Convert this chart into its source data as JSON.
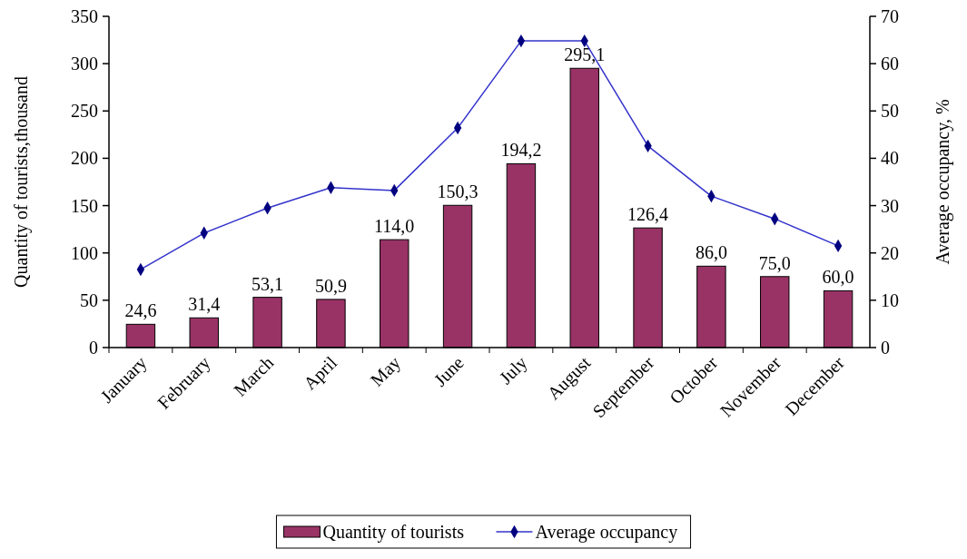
{
  "chart_data": {
    "type": "bar",
    "ylabel": "Quantity of tourists,thousand",
    "y2label": "Average occupancy, %",
    "categories": [
      "January",
      "February",
      "March",
      "April",
      "May",
      "June",
      "July",
      "August",
      "September",
      "October",
      "November",
      "December"
    ],
    "series": [
      {
        "name": "Quantity of tourists",
        "color": "#993366",
        "values": [
          24.6,
          31.4,
          53.1,
          50.9,
          114.0,
          150.3,
          194.2,
          295.1,
          126.4,
          86.0,
          75.0,
          60.0
        ],
        "value_labels": [
          "24,6",
          "31,4",
          "53,1",
          "50,9",
          "114,0",
          "150,3",
          "194,2",
          "295,1",
          "126,4",
          "86,0",
          "75,0",
          "60,0"
        ]
      },
      {
        "name": "Average occupancy",
        "type": "line",
        "axis": "y2",
        "color": "#3333cc",
        "marker": "diamond",
        "values": [
          16.5,
          24.2,
          29.5,
          33.8,
          33.2,
          46.4,
          64.8,
          64.8,
          42.6,
          32.0,
          27.2,
          21.5
        ]
      }
    ],
    "ylim": [
      0,
      350
    ],
    "yticks": [
      0,
      50,
      100,
      150,
      200,
      250,
      300,
      350
    ],
    "y2lim": [
      0,
      70
    ],
    "y2ticks": [
      0,
      10,
      20,
      30,
      40,
      50,
      60,
      70
    ],
    "grid": false,
    "legend": "bottom"
  }
}
